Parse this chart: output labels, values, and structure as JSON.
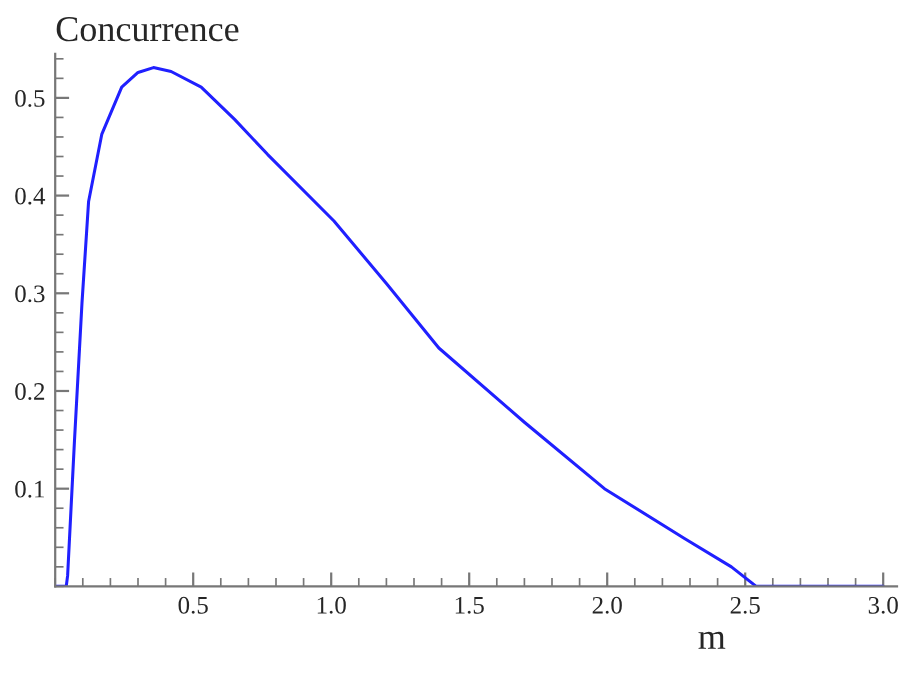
{
  "chart_data": {
    "type": "line",
    "ylabel": "Concurrence",
    "xlabel": "m",
    "series": [
      {
        "color": "#2020ff",
        "x": [
          0.0,
          0.04,
          0.045,
          0.07,
          0.097,
          0.121,
          0.169,
          0.241,
          0.3,
          0.356,
          0.42,
          0.529,
          0.65,
          0.77,
          1.01,
          1.2,
          1.39,
          1.7,
          1.99,
          2.28,
          2.45,
          2.54,
          2.6,
          3.0
        ],
        "values": [
          0.0,
          0.0,
          0.011,
          0.15,
          0.29,
          0.394,
          0.463,
          0.511,
          0.526,
          0.531,
          0.527,
          0.511,
          0.478,
          0.442,
          0.374,
          0.31,
          0.244,
          0.168,
          0.1,
          0.049,
          0.02,
          0.0,
          0.0,
          0.0
        ]
      }
    ],
    "xlim": [
      0,
      3.05
    ],
    "ylim": [
      0,
      0.545
    ],
    "xticks": [
      0.5,
      {
        "value": 1,
        "label": "1.0"
      },
      1.5,
      {
        "value": 2,
        "label": "2.0"
      },
      2.5,
      {
        "value": 3,
        "label": "3.0"
      }
    ],
    "yticks": [
      0.1,
      0.2,
      0.3,
      0.4,
      0.5
    ],
    "grid": false,
    "marker": "none",
    "line_style": "solid"
  }
}
